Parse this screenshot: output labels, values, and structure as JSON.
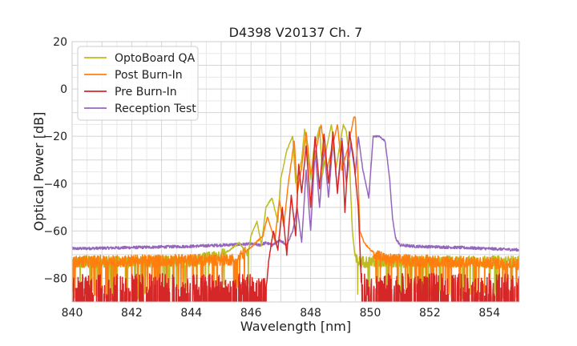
{
  "chart_data": {
    "type": "line",
    "title": "D4398 V20137 Ch. 7",
    "xlabel": "Wavelength [nm]",
    "ylabel": "Optical Power [dB]",
    "xlim": [
      840,
      855
    ],
    "ylim": [
      -90,
      20
    ],
    "xticks": [
      840,
      842,
      844,
      846,
      848,
      850,
      852,
      854
    ],
    "yticks": [
      20,
      0,
      -20,
      -40,
      -60,
      -80
    ],
    "grid": true,
    "legend_position": "top-left",
    "series": [
      {
        "name": "OptoBoard QA",
        "color": "#bcbd22",
        "noise_floor": -73,
        "x": [
          840,
          844,
          845.0,
          845.3,
          845.6,
          845.9,
          846.0,
          846.2,
          846.35,
          846.5,
          846.7,
          846.9,
          847.0,
          847.2,
          847.4,
          847.5,
          847.7,
          847.8,
          848.0,
          848.1,
          848.3,
          848.4,
          848.55,
          848.7,
          848.85,
          849.0,
          849.1,
          849.2,
          849.3,
          849.35,
          849.4,
          849.5,
          849.6,
          855
        ],
        "y": [
          -73,
          -73,
          -70,
          -68,
          -65,
          -70,
          -62,
          -56,
          -66,
          -50,
          -46,
          -56,
          -38,
          -26,
          -20,
          -40,
          -30,
          -17,
          -38,
          -26,
          -16,
          -36,
          -24,
          -15,
          -34,
          -22,
          -15,
          -18,
          -30,
          -45,
          -60,
          -72,
          -73,
          -73
        ]
      },
      {
        "name": "Post Burn-In",
        "color": "#ff7f0e",
        "noise_floor": -73,
        "x": [
          840,
          845.5,
          846.0,
          846.4,
          846.55,
          846.8,
          846.95,
          847.1,
          847.25,
          847.45,
          847.55,
          847.7,
          847.85,
          848.0,
          848.15,
          848.35,
          848.55,
          848.75,
          848.9,
          849.05,
          849.25,
          849.45,
          849.5,
          849.6,
          849.65,
          849.8,
          850.0,
          850.5,
          855
        ],
        "y": [
          -73,
          -72,
          -67,
          -62,
          -54,
          -64,
          -47,
          -58,
          -40,
          -22,
          -44,
          -33,
          -18,
          -36,
          -28,
          -15,
          -34,
          -23,
          -15,
          -34,
          -25,
          -12,
          -12,
          -40,
          -60,
          -65,
          -68,
          -72,
          -74
        ]
      },
      {
        "name": "Pre Burn-In",
        "color": "#d62728",
        "noise_floor": -86,
        "x": [
          840,
          846.5,
          846.6,
          846.75,
          846.9,
          847.05,
          847.2,
          847.35,
          847.5,
          847.6,
          847.7,
          847.85,
          848.0,
          848.15,
          848.3,
          848.45,
          848.6,
          848.75,
          848.9,
          849.05,
          849.15,
          849.3,
          849.45,
          849.6,
          849.7,
          849.9,
          850.0,
          855
        ],
        "y": [
          -86,
          -86,
          -72,
          -60,
          -68,
          -50,
          -70,
          -45,
          -62,
          -32,
          -44,
          -24,
          -50,
          -20,
          -42,
          -19,
          -40,
          -18,
          -44,
          -22,
          -52,
          -18,
          -30,
          -50,
          -82,
          -86,
          -86,
          -86
        ]
      },
      {
        "name": "Reception Test",
        "color": "#9467bd",
        "noise_floor": -67,
        "x": [
          840,
          844,
          845.0,
          846.0,
          846.3,
          846.5,
          846.7,
          847.0,
          847.2,
          847.4,
          847.55,
          847.7,
          847.85,
          848.0,
          848.15,
          848.3,
          848.45,
          848.6,
          848.75,
          848.9,
          849.05,
          849.2,
          849.35,
          849.5,
          849.6,
          849.75,
          849.95,
          850.1,
          850.3,
          850.5,
          850.65,
          850.75,
          850.85,
          851.0,
          851.5,
          853.0,
          855
        ],
        "y": [
          -67.5,
          -66.5,
          -66,
          -65.5,
          -66,
          -65,
          -66,
          -64,
          -66,
          -60,
          -50,
          -65,
          -34,
          -60,
          -26,
          -50,
          -25,
          -46,
          -22,
          -43,
          -21,
          -40,
          -23,
          -36,
          -20,
          -34,
          -46,
          -20,
          -20,
          -22,
          -38,
          -55,
          -63,
          -66,
          -66.5,
          -67,
          -68
        ]
      }
    ]
  }
}
